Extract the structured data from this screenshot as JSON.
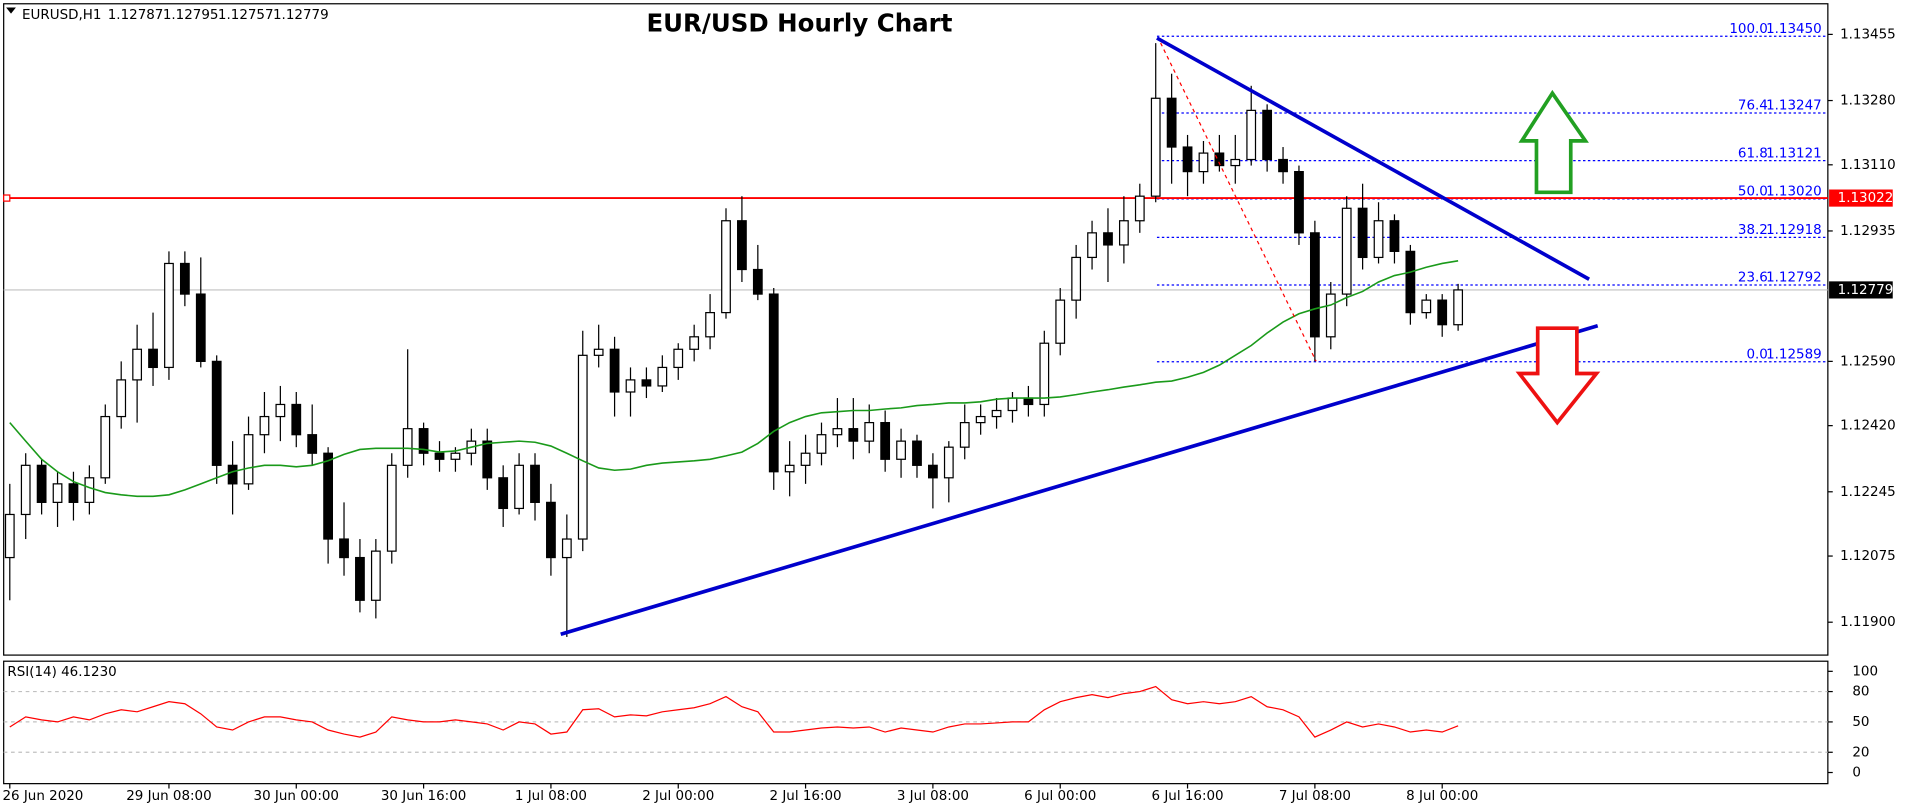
{
  "chart_data": [
    {
      "type": "candlestick",
      "title": "EUR/USD Hourly Chart",
      "symbol": "EURUSD,H1",
      "ohlc": [
        1.12787,
        1.12795,
        1.12757,
        1.12779
      ],
      "categories": [
        "26 Jun 2020",
        null,
        null,
        null,
        null,
        null,
        null,
        null,
        null,
        null,
        "29 Jun 08:00",
        null,
        null,
        null,
        null,
        null,
        null,
        null,
        "30 Jun 00:00",
        null,
        null,
        null,
        null,
        null,
        null,
        null,
        "30 Jun 16:00",
        null,
        null,
        null,
        null,
        null,
        null,
        null,
        "1 Jul 08:00",
        null,
        null,
        null,
        null,
        null,
        null,
        null,
        "2 Jul 00:00",
        null,
        null,
        null,
        null,
        null,
        null,
        null,
        "2 Jul 16:00",
        null,
        null,
        null,
        null,
        null,
        null,
        null,
        "3 Jul 08:00",
        null,
        null,
        null,
        null,
        null,
        null,
        null,
        "6 Jul 00:00",
        null,
        null,
        null,
        null,
        null,
        null,
        null,
        "6 Jul 16:00",
        null,
        null,
        null,
        null,
        null,
        null,
        null,
        "7 Jul 08:00",
        null,
        null,
        null,
        null,
        null,
        null,
        null,
        "8 Jul 00:00",
        null
      ],
      "open": [
        1.12071,
        1.12185,
        1.12315,
        1.12217,
        1.12266,
        1.12217,
        1.12282,
        1.12444,
        1.12541,
        1.12622,
        1.12574,
        1.12849,
        1.12768,
        1.1259,
        1.12315,
        1.12266,
        1.12396,
        1.12444,
        1.12476,
        1.12396,
        1.12347,
        1.1212,
        1.12071,
        1.11958,
        1.12088,
        1.12315,
        1.12412,
        1.12347,
        1.12331,
        1.12347,
        1.12379,
        1.12282,
        1.12201,
        1.12315,
        1.12217,
        1.12071,
        1.1212,
        1.12606,
        1.12622,
        1.12509,
        1.12541,
        1.12525,
        1.12574,
        1.12622,
        1.12655,
        1.12719,
        1.12962,
        1.12833,
        1.12768,
        1.12298,
        1.12315,
        1.12347,
        1.12396,
        1.12412,
        1.12379,
        1.12428,
        1.12331,
        1.12379,
        1.12315,
        1.12282,
        1.12363,
        1.12428,
        1.12444,
        1.1246,
        1.12493,
        1.12476,
        1.12638,
        1.12752,
        1.12865,
        1.1293,
        1.12898,
        1.12962,
        1.13027,
        1.13286,
        1.13157,
        1.13092,
        1.13141,
        1.13108,
        1.13124,
        1.13254,
        1.13124,
        1.13092,
        1.1293,
        1.12655,
        1.12768,
        1.12995,
        1.12865,
        1.12962,
        1.12881,
        1.12719,
        1.12752,
        1.12687
      ],
      "high": [
        1.12266,
        1.12347,
        1.12331,
        1.12298,
        1.12298,
        1.12315,
        1.12476,
        1.1259,
        1.12687,
        1.12719,
        1.12881,
        1.12881,
        1.12865,
        1.12606,
        1.12379,
        1.12444,
        1.12509,
        1.12525,
        1.12509,
        1.12476,
        1.12363,
        1.12217,
        1.1212,
        1.1212,
        1.12347,
        1.12622,
        1.12428,
        1.12379,
        1.12363,
        1.12412,
        1.12412,
        1.12315,
        1.12347,
        1.12347,
        1.12266,
        1.12185,
        1.12671,
        1.12687,
        1.12655,
        1.12574,
        1.12574,
        1.12606,
        1.12638,
        1.12687,
        1.12768,
        1.12995,
        1.13027,
        1.12898,
        1.12784,
        1.12379,
        1.12396,
        1.12428,
        1.12493,
        1.12493,
        1.12476,
        1.1246,
        1.12412,
        1.12396,
        1.12347,
        1.12379,
        1.12476,
        1.12476,
        1.12493,
        1.12509,
        1.12525,
        1.12671,
        1.12784,
        1.12898,
        1.12962,
        1.12995,
        1.13027,
        1.1306,
        1.13432,
        1.13351,
        1.13189,
        1.13173,
        1.13189,
        1.13189,
        1.13319,
        1.1327,
        1.13157,
        1.13108,
        1.12962,
        1.128,
        1.13027,
        1.1306,
        1.13011,
        1.12979,
        1.12898,
        1.12768,
        1.12768,
        1.12795
      ],
      "low": [
        1.11958,
        1.1212,
        1.12185,
        1.12152,
        1.12169,
        1.12185,
        1.12266,
        1.12412,
        1.12428,
        1.12525,
        1.12541,
        1.12736,
        1.12574,
        1.12266,
        1.12185,
        1.1225,
        1.12347,
        1.12379,
        1.12363,
        1.12315,
        1.12055,
        1.12023,
        1.11926,
        1.1191,
        1.12055,
        1.12282,
        1.12315,
        1.12298,
        1.12298,
        1.12315,
        1.1225,
        1.12152,
        1.12185,
        1.12169,
        1.12023,
        1.11861,
        1.12088,
        1.12574,
        1.12444,
        1.12444,
        1.12493,
        1.12509,
        1.12541,
        1.1259,
        1.12622,
        1.12703,
        1.128,
        1.12752,
        1.1225,
        1.12233,
        1.12266,
        1.12315,
        1.12363,
        1.12331,
        1.12347,
        1.12298,
        1.12282,
        1.12282,
        1.12201,
        1.12217,
        1.12331,
        1.12396,
        1.12412,
        1.12428,
        1.12444,
        1.12444,
        1.12606,
        1.12703,
        1.12833,
        1.128,
        1.12849,
        1.1293,
        1.13011,
        1.1306,
        1.13027,
        1.1306,
        1.13092,
        1.1306,
        1.13108,
        1.13092,
        1.1306,
        1.12898,
        1.1259,
        1.12622,
        1.12736,
        1.12833,
        1.12849,
        1.12849,
        1.12687,
        1.12703,
        1.12655,
        1.12671
      ],
      "close": [
        1.12185,
        1.12315,
        1.12217,
        1.12266,
        1.12217,
        1.12282,
        1.12444,
        1.12541,
        1.12622,
        1.12574,
        1.12849,
        1.12768,
        1.1259,
        1.12315,
        1.12266,
        1.12396,
        1.12444,
        1.12476,
        1.12396,
        1.12347,
        1.1212,
        1.12071,
        1.11958,
        1.12088,
        1.12315,
        1.12412,
        1.12347,
        1.12331,
        1.12347,
        1.12379,
        1.12282,
        1.12201,
        1.12315,
        1.12217,
        1.12071,
        1.1212,
        1.12606,
        1.12622,
        1.12509,
        1.12541,
        1.12525,
        1.12574,
        1.12622,
        1.12655,
        1.12719,
        1.12962,
        1.12833,
        1.12768,
        1.12298,
        1.12315,
        1.12347,
        1.12396,
        1.12412,
        1.12379,
        1.12428,
        1.12331,
        1.12379,
        1.12315,
        1.12282,
        1.12363,
        1.12428,
        1.12444,
        1.1246,
        1.12493,
        1.12476,
        1.12638,
        1.12752,
        1.12865,
        1.1293,
        1.12898,
        1.12962,
        1.13027,
        1.13286,
        1.13157,
        1.13092,
        1.13141,
        1.13108,
        1.13124,
        1.13254,
        1.13124,
        1.13092,
        1.1293,
        1.12655,
        1.12768,
        1.12995,
        1.12865,
        1.12962,
        1.12881,
        1.12719,
        1.12752,
        1.12687,
        1.12779
      ],
      "ma": {
        "color": "#1a9a1a",
        "values": [
          1.12428,
          1.12379,
          1.12331,
          1.12298,
          1.12272,
          1.12256,
          1.12243,
          1.12237,
          1.12233,
          1.12233,
          1.12237,
          1.1225,
          1.12266,
          1.12282,
          1.12298,
          1.12308,
          1.12315,
          1.12315,
          1.12311,
          1.12315,
          1.12327,
          1.12344,
          1.12357,
          1.1236,
          1.1236,
          1.1236,
          1.12357,
          1.1235,
          1.12353,
          1.12363,
          1.12373,
          1.12376,
          1.12379,
          1.12376,
          1.12366,
          1.12347,
          1.12327,
          1.12308,
          1.12302,
          1.12305,
          1.12315,
          1.12321,
          1.12324,
          1.12327,
          1.12331,
          1.1234,
          1.1235,
          1.12373,
          1.12405,
          1.12428,
          1.12444,
          1.12454,
          1.12457,
          1.1246,
          1.1246,
          1.12464,
          1.12467,
          1.12473,
          1.12476,
          1.1248,
          1.1248,
          1.12483,
          1.1249,
          1.12493,
          1.12493,
          1.12493,
          1.12496,
          1.12502,
          1.12509,
          1.12515,
          1.12522,
          1.12528,
          1.12535,
          1.12538,
          1.12548,
          1.12561,
          1.1258,
          1.12606,
          1.12632,
          1.12665,
          1.12694,
          1.12716,
          1.12729,
          1.12739,
          1.12759,
          1.12775,
          1.128,
          1.12817,
          1.12826,
          1.12839,
          1.12849,
          1.12856
        ]
      },
      "ylim": [
        1.11813,
        1.13536
      ],
      "yticks": [
        1.13455,
        {
          "value": 1.1328,
          "label": "1.13280"
        },
        {
          "value": 1.1311,
          "label": "1.13110"
        },
        1.12935,
        {
          "value": 1.1259,
          "label": "1.12590"
        },
        {
          "value": 1.1242,
          "label": "1.12420"
        },
        1.12245,
        1.12075,
        {
          "value": 1.119,
          "label": "1.11900"
        }
      ],
      "hline": {
        "value": 1.13022,
        "color": "#ff0000"
      },
      "current_price": 1.12779,
      "fib": {
        "color": "#0000ff",
        "levels": [
          {
            "level": "100.0",
            "value": 1.1345,
            "label": "1.13450"
          },
          {
            "level": "76.4",
            "value": 1.13247,
            "label": "1.13247"
          },
          {
            "level": "61.8",
            "value": 1.13121,
            "label": "1.13121"
          },
          {
            "level": "50.0",
            "value": 1.1302,
            "label": "1.13020"
          },
          {
            "level": "38.2",
            "value": 1.12918,
            "label": "1.12918"
          },
          {
            "level": "23.6",
            "value": 1.12792,
            "label": "1.12792"
          },
          {
            "level": "0.0",
            "value": 1.12589,
            "label": "1.12589"
          }
        ]
      }
    },
    {
      "type": "line",
      "title": "RSI(14) 46.1230",
      "color": "#ff0000",
      "values": [
        45,
        55,
        52,
        50,
        55,
        52,
        58,
        62,
        60,
        65,
        70,
        68,
        58,
        45,
        42,
        50,
        55,
        55,
        52,
        50,
        42,
        38,
        35,
        40,
        55,
        52,
        50,
        50,
        52,
        50,
        48,
        42,
        50,
        48,
        38,
        40,
        62,
        63,
        55,
        57,
        56,
        60,
        62,
        64,
        68,
        75,
        65,
        60,
        40,
        40,
        42,
        44,
        45,
        44,
        45,
        40,
        44,
        42,
        40,
        45,
        48,
        48,
        49,
        50,
        50,
        62,
        70,
        74,
        77,
        74,
        78,
        80,
        85,
        72,
        68,
        70,
        68,
        70,
        75,
        65,
        62,
        55,
        35,
        42,
        50,
        45,
        48,
        45,
        40,
        42,
        40,
        46.123
      ],
      "ylim": [
        -11,
        110
      ],
      "yticks": [
        100,
        80,
        50,
        20,
        0
      ],
      "levels": [
        80,
        50,
        20
      ]
    }
  ]
}
